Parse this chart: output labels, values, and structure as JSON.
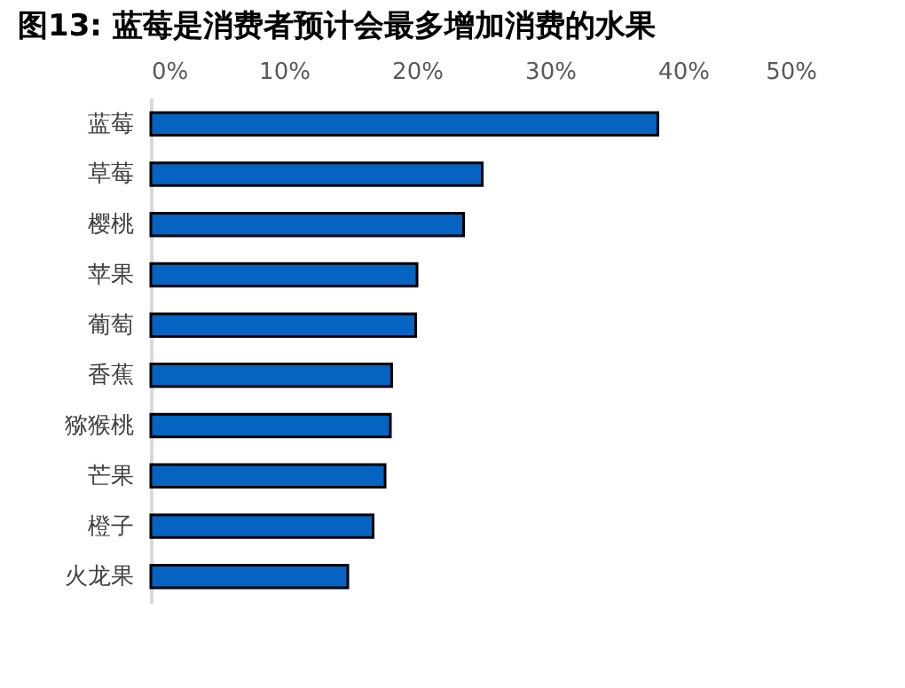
{
  "chart_data": {
    "type": "bar",
    "orientation": "horizontal",
    "title": "图13:  蓝莓是消费者预计会最多增加消费的水果",
    "categories": [
      "蓝莓",
      "草莓",
      "樱桃",
      "苹果",
      "葡萄",
      "香蕉",
      "猕猴桃",
      "芒果",
      "橙子",
      "火龙果"
    ],
    "values": [
      38.1,
      24.9,
      23.5,
      20.0,
      19.9,
      18.1,
      18.0,
      17.6,
      16.7,
      14.8
    ],
    "color": "#0563c1",
    "xlim": [
      0,
      50
    ],
    "xticks": [
      {
        "value": 0,
        "label": "0%"
      },
      {
        "value": 10,
        "label": "10%"
      },
      {
        "value": 20,
        "label": "20%"
      },
      {
        "value": 30,
        "label": "30%"
      },
      {
        "value": 40,
        "label": "40%"
      },
      {
        "value": 50,
        "label": "50%"
      }
    ],
    "grid": false
  }
}
